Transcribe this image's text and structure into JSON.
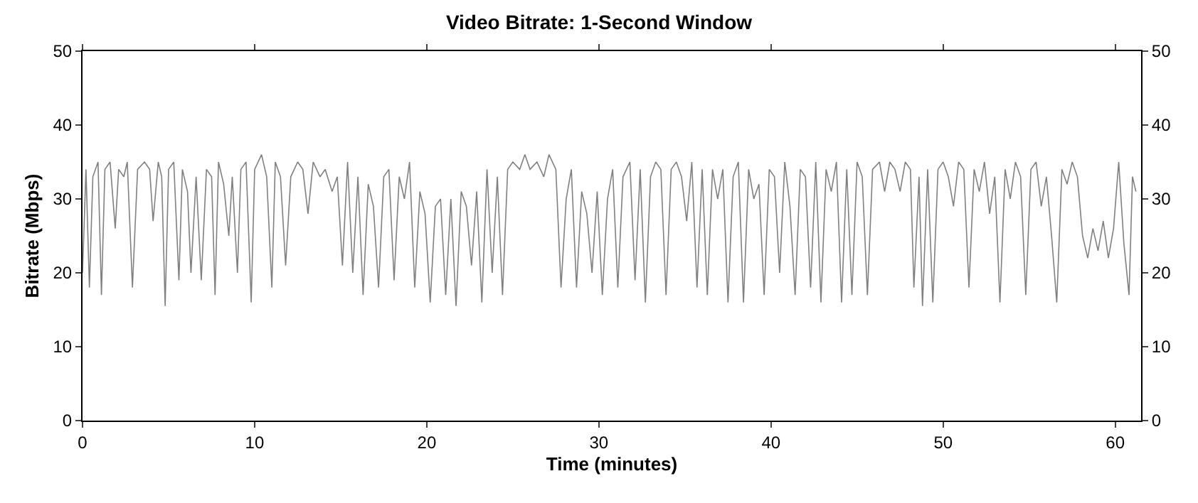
{
  "chart_data": {
    "type": "line",
    "title": "Video Bitrate: 1-Second Window",
    "xlabel": "Time (minutes)",
    "ylabel": "Bitrate (Mbps)",
    "xlim": [
      0,
      61.5
    ],
    "xticks": [
      0,
      10,
      20,
      30,
      40,
      50,
      60
    ],
    "ylim": [
      0,
      50
    ],
    "yticks": [
      0,
      10,
      20,
      30,
      40,
      50
    ],
    "y2lim": [
      0,
      50
    ],
    "y2ticks": [
      0,
      10,
      20,
      30,
      40,
      50
    ],
    "marker": "none",
    "line_style": "solid",
    "series": [
      {
        "color": "#808080",
        "x": [
          0,
          0.2,
          0.4,
          0.6,
          0.9,
          1.1,
          1.3,
          1.6,
          1.9,
          2.1,
          2.4,
          2.6,
          2.9,
          3.2,
          3.6,
          3.9,
          4.1,
          4.4,
          4.6,
          4.8,
          5.0,
          5.3,
          5.6,
          5.8,
          6.1,
          6.3,
          6.6,
          6.9,
          7.2,
          7.5,
          7.7,
          7.9,
          8.2,
          8.5,
          8.7,
          9.0,
          9.2,
          9.5,
          9.8,
          10.0,
          10.4,
          10.7,
          11.0,
          11.2,
          11.5,
          11.8,
          12.1,
          12.5,
          12.8,
          13.1,
          13.4,
          13.8,
          14.1,
          14.5,
          14.8,
          15.1,
          15.4,
          15.7,
          16.0,
          16.3,
          16.6,
          16.9,
          17.2,
          17.5,
          17.8,
          18.1,
          18.4,
          18.7,
          19.0,
          19.3,
          19.6,
          19.9,
          20.2,
          20.5,
          20.8,
          21.1,
          21.4,
          21.7,
          22.0,
          22.3,
          22.6,
          22.9,
          23.2,
          23.5,
          23.8,
          24.1,
          24.4,
          24.7,
          25.0,
          25.4,
          25.7,
          26.0,
          26.4,
          26.8,
          27.1,
          27.5,
          27.8,
          28.1,
          28.4,
          28.7,
          29.0,
          29.3,
          29.6,
          29.9,
          30.2,
          30.5,
          30.8,
          31.1,
          31.4,
          31.8,
          32.1,
          32.4,
          32.7,
          33.0,
          33.3,
          33.6,
          33.9,
          34.2,
          34.5,
          34.8,
          35.1,
          35.4,
          35.7,
          36.0,
          36.3,
          36.6,
          36.9,
          37.2,
          37.5,
          37.8,
          38.1,
          38.4,
          38.7,
          39.0,
          39.3,
          39.6,
          39.9,
          40.2,
          40.5,
          40.8,
          41.1,
          41.4,
          41.7,
          42.0,
          42.3,
          42.6,
          42.9,
          43.2,
          43.5,
          43.8,
          44.1,
          44.4,
          44.7,
          45.0,
          45.3,
          45.6,
          45.9,
          46.3,
          46.6,
          46.9,
          47.2,
          47.5,
          47.8,
          48.1,
          48.3,
          48.6,
          48.8,
          49.1,
          49.4,
          49.7,
          50.0,
          50.3,
          50.6,
          50.9,
          51.2,
          51.5,
          51.8,
          52.1,
          52.4,
          52.7,
          53.0,
          53.3,
          53.6,
          53.9,
          54.2,
          54.5,
          54.8,
          55.1,
          55.4,
          55.7,
          56.0,
          56.3,
          56.6,
          56.9,
          57.2,
          57.5,
          57.8,
          58.1,
          58.4,
          58.7,
          59.0,
          59.3,
          59.6,
          59.9,
          60.2,
          60.5,
          60.8,
          61.0,
          61.2
        ],
        "values": [
          20,
          34,
          18,
          33,
          35,
          17,
          34,
          35,
          26,
          34,
          33,
          35,
          18,
          34,
          35,
          34,
          27,
          35,
          33,
          15.5,
          34,
          35,
          19,
          34,
          31,
          20,
          33,
          19,
          34,
          33,
          17,
          35,
          32,
          25,
          33,
          20,
          34,
          35,
          16,
          34,
          36,
          33,
          18,
          35,
          33,
          21,
          33,
          35,
          34,
          28,
          35,
          33,
          34,
          31,
          33,
          21,
          35,
          20,
          33,
          17,
          32,
          29,
          18,
          33,
          34,
          19,
          33,
          30,
          35,
          18,
          31,
          28,
          16,
          29,
          30,
          17,
          30,
          15.5,
          31,
          29,
          21,
          31,
          16,
          34,
          20,
          33,
          17,
          34,
          35,
          34,
          36,
          34,
          35,
          33,
          36,
          34,
          18,
          30,
          34,
          18,
          31,
          28,
          20,
          31,
          17,
          30,
          34,
          18,
          33,
          35,
          19,
          34,
          16,
          33,
          35,
          34,
          17,
          34,
          35,
          33,
          27,
          35,
          18,
          34,
          17,
          34,
          30,
          34,
          16,
          33,
          35,
          16,
          34,
          30,
          32,
          17,
          34,
          33,
          20,
          35,
          29,
          17,
          34,
          33,
          18,
          35,
          16,
          34,
          31,
          35,
          16,
          34,
          17,
          35,
          33,
          17,
          34,
          35,
          31,
          35,
          34,
          31,
          35,
          34,
          18,
          33,
          15.5,
          34,
          16,
          34,
          35,
          33,
          29,
          35,
          34,
          18,
          34,
          31,
          35,
          28,
          33,
          16,
          34,
          30,
          35,
          33,
          17,
          34,
          35,
          29,
          33,
          25,
          16,
          34,
          32,
          35,
          33,
          25,
          22,
          26,
          23,
          27,
          22,
          26,
          35,
          24,
          17,
          33,
          31
        ]
      }
    ]
  }
}
